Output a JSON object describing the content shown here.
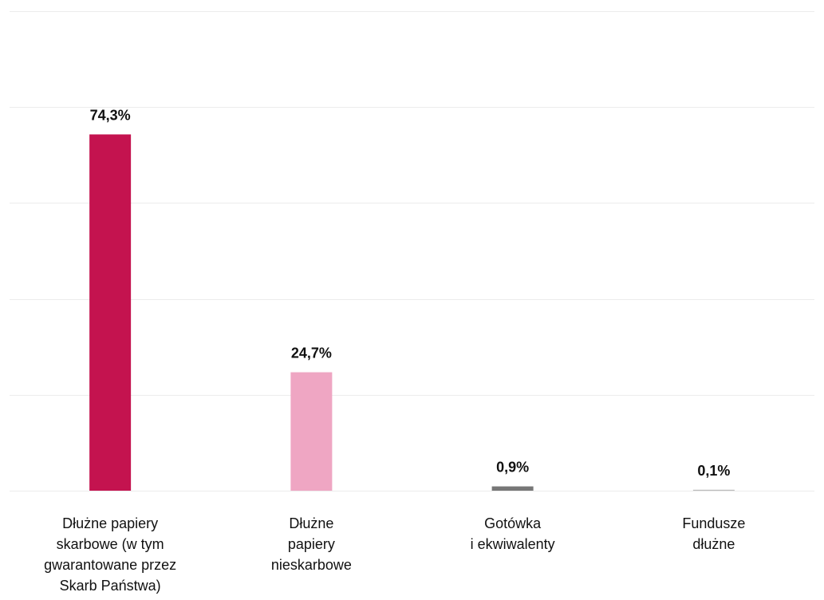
{
  "chart_data": {
    "type": "bar",
    "categories": [
      [
        "Dłużne papiery",
        "skarbowe (w tym",
        "gwarantowane przez",
        "Skarb Państwa)"
      ],
      [
        "Dłużne",
        "papiery",
        "nieskarbowe"
      ],
      [
        "Gotówka",
        "i ekwiwalenty"
      ],
      [
        "Fundusze",
        "dłużne"
      ]
    ],
    "values": [
      74.3,
      24.7,
      0.9,
      0.1
    ],
    "value_labels": [
      "74,3%",
      "24,7%",
      "0,9%",
      "0,1%"
    ],
    "colors": [
      "#c4134f",
      "#efa6c3",
      "#777777",
      "#bbbbbb"
    ],
    "title": "",
    "xlabel": "",
    "ylabel": "",
    "ylim": [
      0,
      100
    ],
    "grid": true,
    "legend": "none"
  }
}
